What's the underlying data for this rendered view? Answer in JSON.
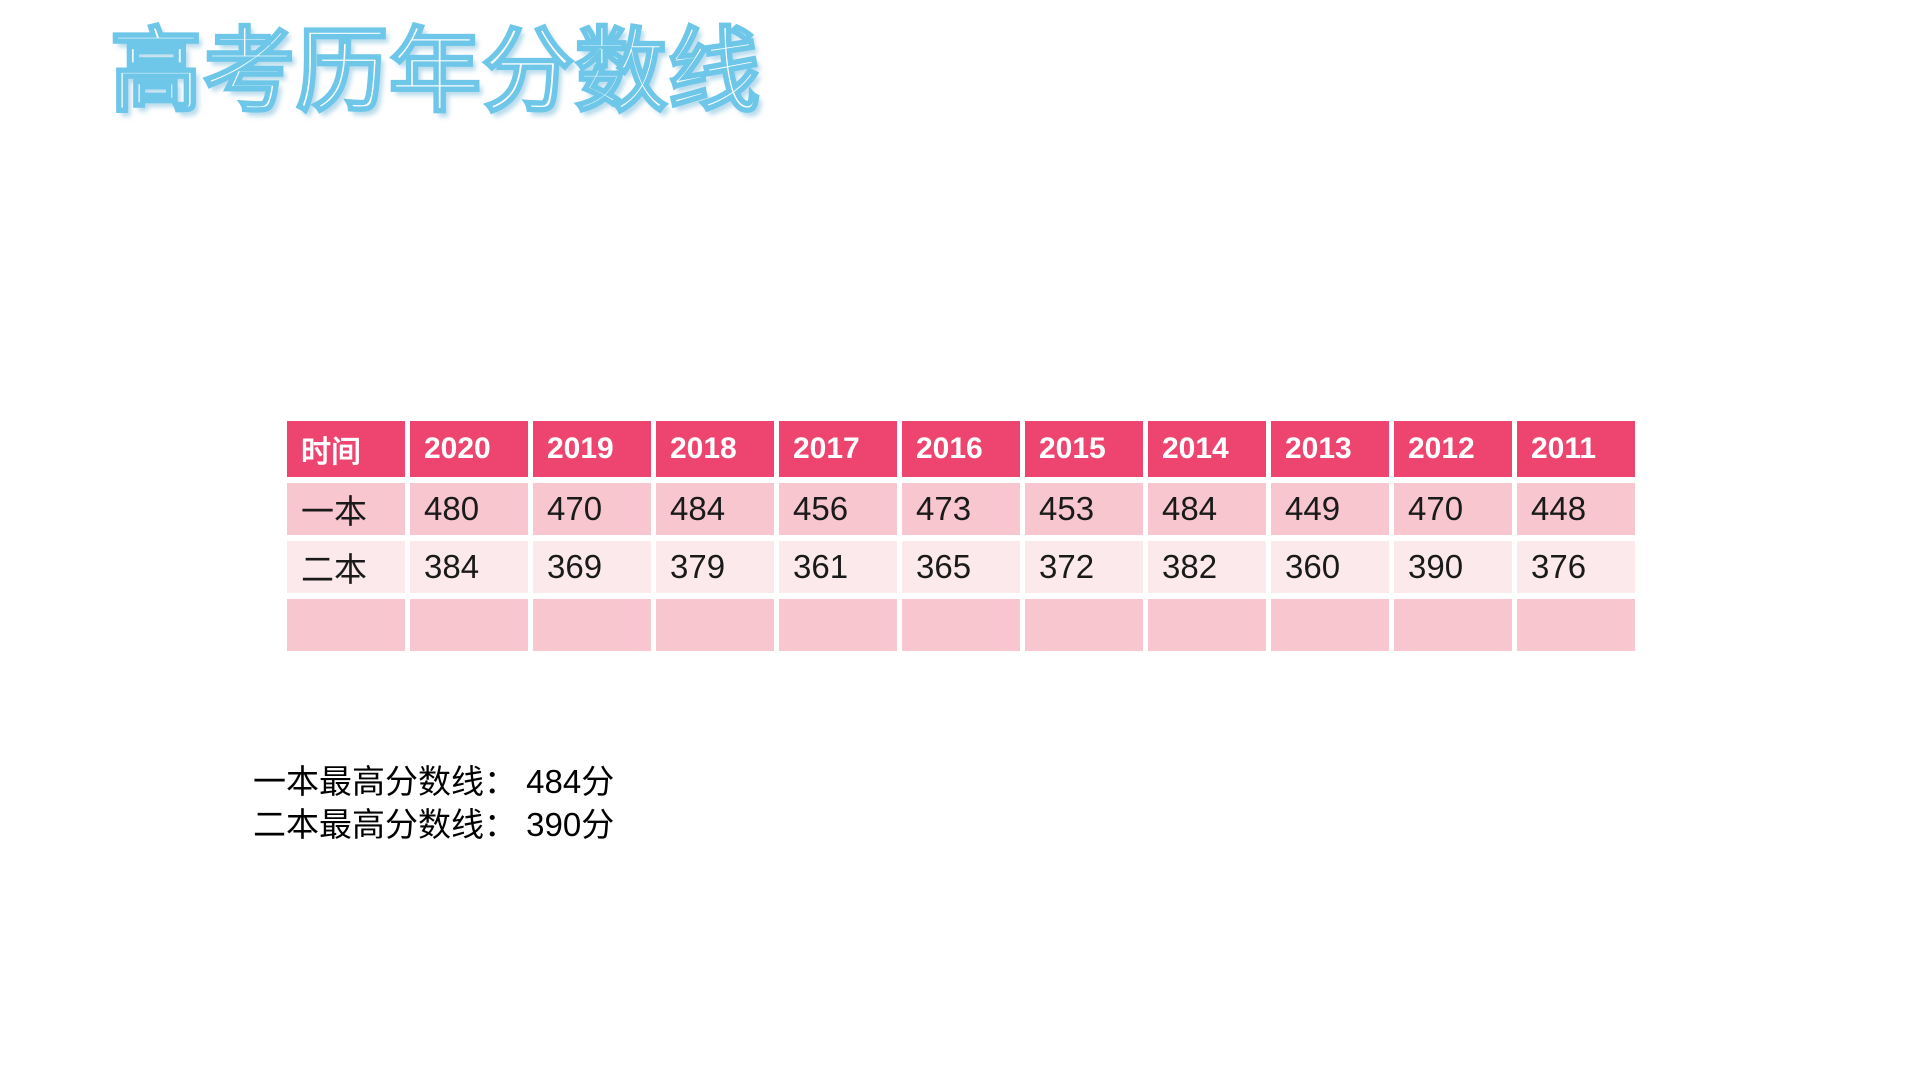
{
  "title": "高考历年分数线",
  "table": {
    "headers": [
      "时间",
      "2020",
      "2019",
      "2018",
      "2017",
      "2016",
      "2015",
      "2014",
      "2013",
      "2012",
      "2011"
    ],
    "rows": [
      {
        "label": "一本",
        "values": [
          "480",
          "470",
          "484",
          "456",
          "473",
          "453",
          "484",
          "449",
          "470",
          "448"
        ]
      },
      {
        "label": "二本",
        "values": [
          "384",
          "369",
          "379",
          "361",
          "365",
          "372",
          "382",
          "360",
          "390",
          "376"
        ]
      },
      {
        "label": "",
        "values": [
          "",
          "",
          "",
          "",
          "",
          "",
          "",
          "",
          "",
          ""
        ]
      }
    ]
  },
  "summary": {
    "line1": "一本最高分数线： 484分",
    "line2": "二本最高分数线： 390分"
  },
  "colors": {
    "header_bg": "#EE4570",
    "header_text": "#FFFFFF",
    "row_dark_bg": "#F8C6CF",
    "row_light_bg": "#FCE9EC",
    "body_text": "#1A1A1A",
    "summary_text": "#000000",
    "title_fill": "#FFFFFF",
    "title_outline": "#6EC6E8"
  }
}
